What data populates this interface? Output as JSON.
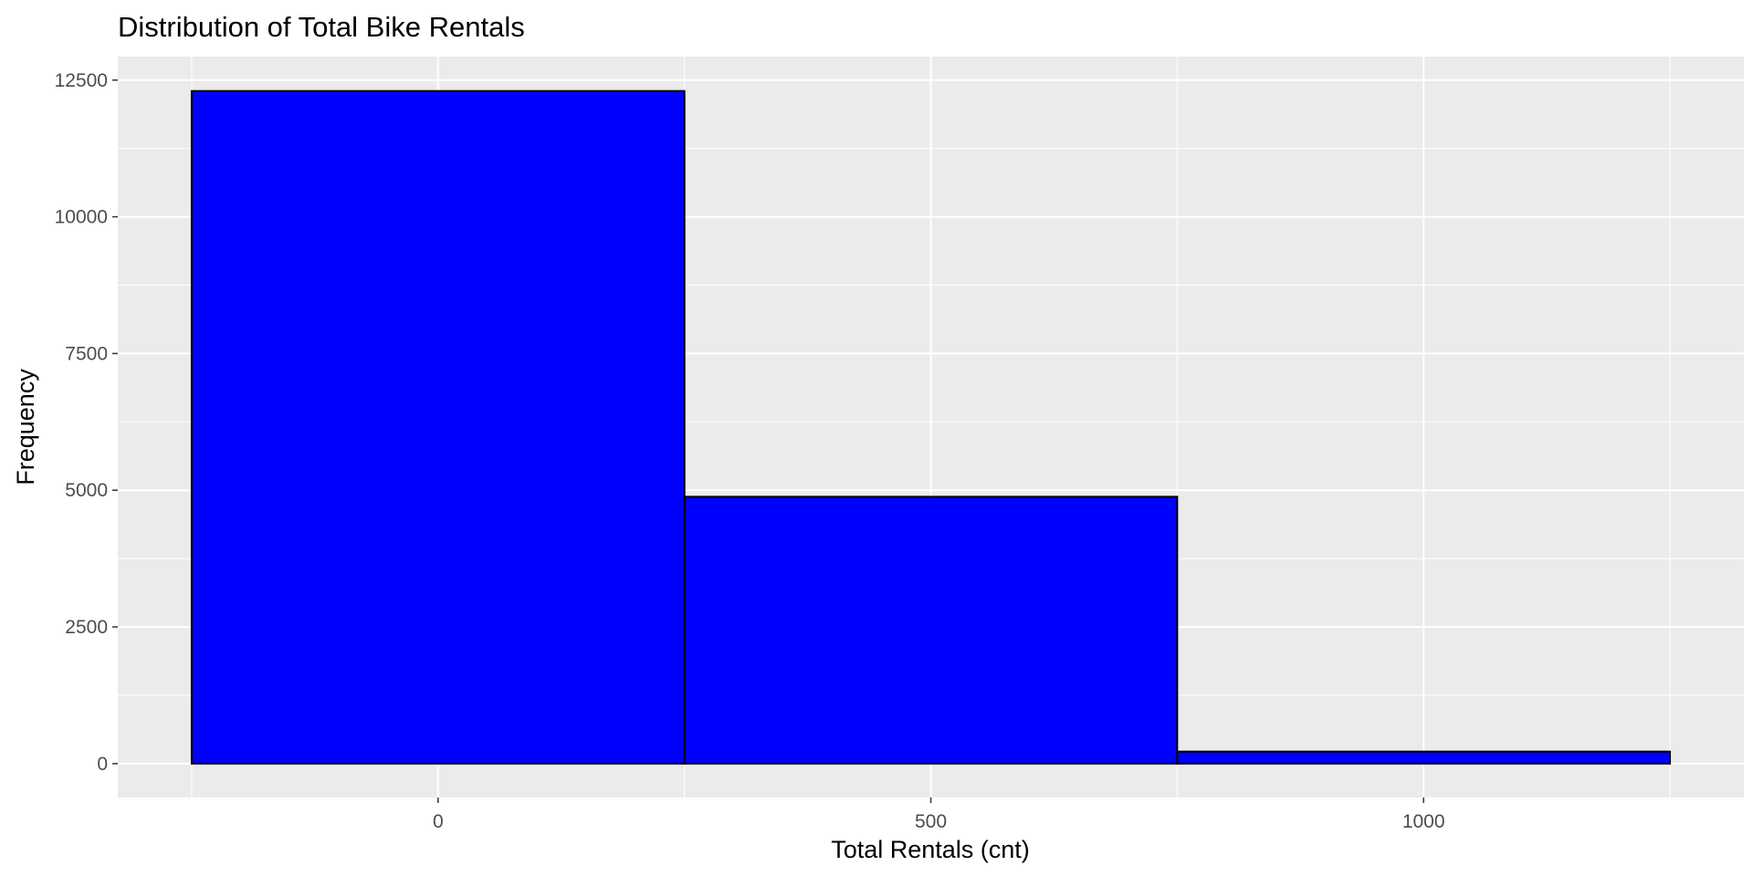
{
  "chart_data": {
    "type": "bar",
    "title": "Distribution of Total Bike Rentals",
    "xlabel": "Total Rentals (cnt)",
    "ylabel": "Frequency",
    "bins": [
      {
        "x_start": -250,
        "x_end": 250,
        "count": 12300
      },
      {
        "x_start": 250,
        "x_end": 750,
        "count": 4880
      },
      {
        "x_start": 750,
        "x_end": 1250,
        "count": 220
      }
    ],
    "xlim": [
      -325,
      1325
    ],
    "ylim": [
      -620,
      12930
    ],
    "x_ticks": [
      0,
      500,
      1000
    ],
    "x_tick_labels": [
      "0",
      "500",
      "1000"
    ],
    "y_ticks": [
      0,
      2500,
      5000,
      7500,
      10000,
      12500
    ],
    "y_tick_labels": [
      "0",
      "2500",
      "5000",
      "7500",
      "10000",
      "12500"
    ],
    "grid": true,
    "legend": "none",
    "colors": {
      "bar_fill": "#0000FF",
      "bar_outline": "#000000",
      "panel_background": "#EBEBEB",
      "grid": "#FFFFFF",
      "tick_text": "#4D4D4D",
      "tick_mark": "#333333"
    }
  }
}
